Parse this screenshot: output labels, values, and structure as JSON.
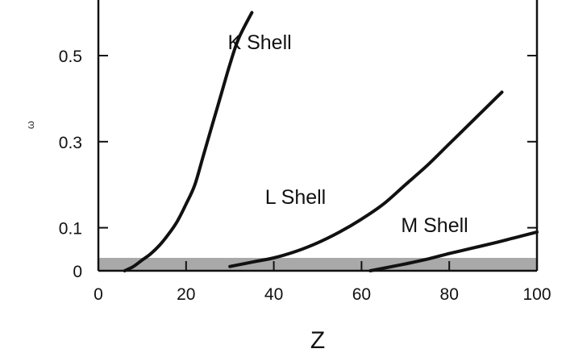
{
  "chart_data": {
    "type": "line",
    "title": "",
    "xlabel": "Z",
    "ylabel": "ω",
    "xlim": [
      0,
      100
    ],
    "ylim": [
      0,
      0.6
    ],
    "xticks": [
      0,
      20,
      40,
      60,
      80,
      100
    ],
    "xtick_labels": [
      "0",
      "20",
      "40",
      "60",
      "80",
      "100"
    ],
    "yticks": [
      0,
      0.1,
      0.3,
      0.5
    ],
    "ytick_labels": [
      "0",
      "0.1",
      "0.3",
      "0.5"
    ],
    "grid": false,
    "shaded_band": {
      "y_from": 0,
      "y_to": 0.03,
      "color": "#a9a9a9"
    },
    "series": [
      {
        "name": "K Shell",
        "x": [
          6,
          8,
          10,
          12,
          14,
          16,
          18,
          20,
          22,
          24,
          26,
          28,
          30,
          32,
          35
        ],
        "y": [
          0.0,
          0.01,
          0.025,
          0.04,
          0.06,
          0.085,
          0.115,
          0.155,
          0.2,
          0.27,
          0.34,
          0.41,
          0.48,
          0.54,
          0.6
        ]
      },
      {
        "name": "L Shell",
        "x": [
          30,
          35,
          40,
          45,
          50,
          55,
          60,
          65,
          70,
          75,
          80,
          85,
          90,
          92
        ],
        "y": [
          0.01,
          0.02,
          0.03,
          0.045,
          0.065,
          0.09,
          0.12,
          0.155,
          0.2,
          0.245,
          0.295,
          0.345,
          0.395,
          0.415
        ]
      },
      {
        "name": "M Shell",
        "x": [
          62,
          65,
          70,
          75,
          80,
          85,
          90,
          95,
          100
        ],
        "y": [
          0.0,
          0.006,
          0.016,
          0.027,
          0.04,
          0.052,
          0.064,
          0.077,
          0.09
        ]
      }
    ],
    "annotations": [
      {
        "text": "K Shell",
        "x": 29.5,
        "y": 0.515
      },
      {
        "text": "L Shell",
        "x": 38,
        "y": 0.155
      },
      {
        "text": "M Shell",
        "x": 69,
        "y": 0.09
      }
    ],
    "colors": {
      "line": "#111111",
      "band": "#a9a9a9",
      "axis": "#111111"
    }
  }
}
